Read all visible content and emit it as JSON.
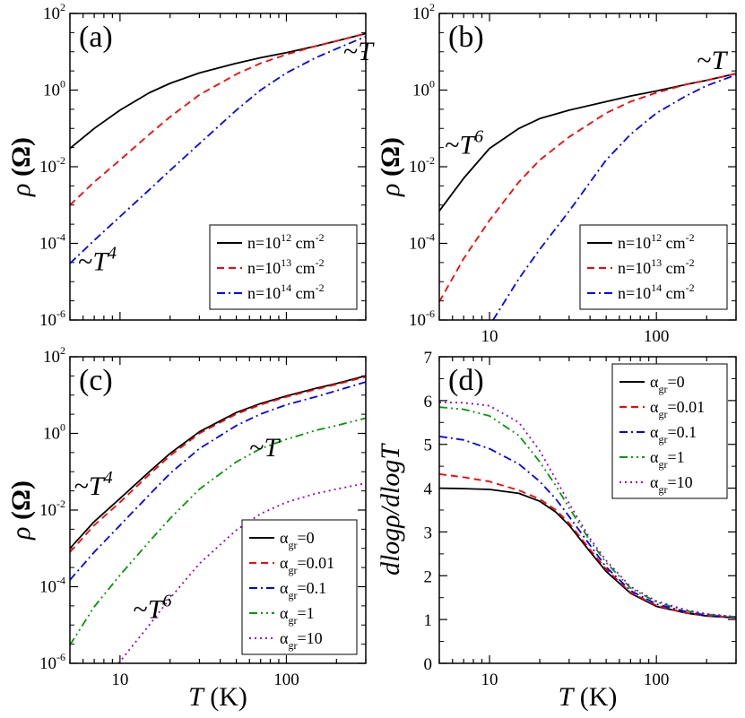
{
  "charts": [
    {
      "panel": "(a)",
      "type": "line",
      "xscale": "log",
      "yscale": "log",
      "xlim": [
        5,
        300
      ],
      "ylim": [
        1e-06,
        100
      ],
      "xlabel": "",
      "ylabel": "ρ (Ω)",
      "x_tick_labels": [],
      "y_ticks": [
        {
          "base": "10",
          "exp": "-6",
          "value": 1e-06
        },
        {
          "base": "10",
          "exp": "-4",
          "value": 0.0001
        },
        {
          "base": "10",
          "exp": "-2",
          "value": 0.01
        },
        {
          "base": "10",
          "exp": "0",
          "value": 1
        },
        {
          "base": "10",
          "exp": "2",
          "value": 100
        }
      ],
      "legend": {
        "position": "lower-right",
        "entries": [
          {
            "pre": "n=10",
            "sup": "12",
            "post": " cm",
            "sup2": "-2"
          },
          {
            "pre": "n=10",
            "sup": "13",
            "post": " cm",
            "sup2": "-2"
          },
          {
            "pre": "n=10",
            "sup": "14",
            "post": " cm",
            "sup2": "-2"
          }
        ]
      },
      "annotations": [
        {
          "pre": "~T",
          "sup": "",
          "x": 220,
          "y": 6
        },
        {
          "pre": "~T",
          "sup": "4",
          "x": 5.6,
          "y": 2e-05
        }
      ],
      "series": [
        {
          "color": "#000000",
          "dash": "",
          "x": [
            5,
            7,
            10,
            15,
            20,
            30,
            50,
            70,
            100,
            150,
            200,
            300
          ],
          "y": [
            0.03,
            0.1,
            0.3,
            0.85,
            1.5,
            2.8,
            5,
            7,
            9.5,
            14,
            19,
            30
          ]
        },
        {
          "color": "#ff0000",
          "dash": "8,5",
          "x": [
            5,
            7,
            10,
            15,
            20,
            30,
            50,
            70,
            100,
            150,
            200,
            300
          ],
          "y": [
            0.001,
            0.004,
            0.015,
            0.07,
            0.2,
            0.75,
            2.6,
            5,
            8.5,
            14,
            19,
            30
          ]
        },
        {
          "color": "#0000ff",
          "dash": "9,4,2,4",
          "x": [
            5,
            7,
            10,
            15,
            20,
            30,
            50,
            70,
            100,
            150,
            200,
            300
          ],
          "y": [
            3e-05,
            0.00012,
            0.0005,
            0.0025,
            0.008,
            0.04,
            0.3,
            1,
            2.8,
            7,
            12,
            25
          ]
        }
      ]
    },
    {
      "panel": "(b)",
      "type": "line",
      "xscale": "log",
      "yscale": "log",
      "xlim": [
        5,
        300
      ],
      "ylim": [
        1e-06,
        100
      ],
      "xlabel": "",
      "ylabel": "ρ (Ω)",
      "x_tick_labels": [
        "10",
        "100"
      ],
      "y_ticks": [
        {
          "base": "10",
          "exp": "-6",
          "value": 1e-06
        },
        {
          "base": "10",
          "exp": "-4",
          "value": 0.0001
        },
        {
          "base": "10",
          "exp": "-2",
          "value": 0.01
        },
        {
          "base": "10",
          "exp": "0",
          "value": 1
        },
        {
          "base": "10",
          "exp": "2",
          "value": 100
        }
      ],
      "legend": {
        "position": "lower-right",
        "entries": [
          {
            "pre": "n=10",
            "sup": "12",
            "post": " cm",
            "sup2": "-2"
          },
          {
            "pre": "n=10",
            "sup": "13",
            "post": " cm",
            "sup2": "-2"
          },
          {
            "pre": "n=10",
            "sup": "14",
            "post": " cm",
            "sup2": "-2"
          }
        ]
      },
      "annotations": [
        {
          "pre": "~T",
          "sup": "",
          "x": 175,
          "y": 3.5
        },
        {
          "pre": "~T",
          "sup": "6",
          "x": 5.4,
          "y": 0.022
        }
      ],
      "series": [
        {
          "color": "#000000",
          "dash": "",
          "x": [
            5,
            7,
            10,
            15,
            20,
            30,
            50,
            70,
            100,
            150,
            200,
            300
          ],
          "y": [
            0.0007,
            0.005,
            0.03,
            0.1,
            0.18,
            0.3,
            0.5,
            0.7,
            0.95,
            1.4,
            1.8,
            2.7
          ]
        },
        {
          "color": "#ff0000",
          "dash": "8,5",
          "x": [
            5,
            7,
            10,
            15,
            20,
            30,
            50,
            70,
            100,
            150,
            200,
            300
          ],
          "y": [
            3e-06,
            4e-05,
            0.0004,
            0.004,
            0.015,
            0.06,
            0.25,
            0.5,
            0.85,
            1.4,
            1.8,
            2.7
          ]
        },
        {
          "color": "#0000ff",
          "dash": "9,4,2,4",
          "x": [
            10.5,
            15,
            20,
            30,
            50,
            70,
            100,
            150,
            200,
            300
          ],
          "y": [
            1e-06,
            1.2e-05,
            7e-05,
            0.0007,
            0.015,
            0.07,
            0.25,
            0.7,
            1.3,
            2.5
          ]
        }
      ]
    },
    {
      "panel": "(c)",
      "type": "line",
      "xscale": "log",
      "yscale": "log",
      "xlim": [
        5,
        300
      ],
      "ylim": [
        1e-06,
        100
      ],
      "xlabel": "T (K)",
      "ylabel": "ρ (Ω)",
      "x_tick_labels": [
        "10",
        "100"
      ],
      "y_ticks": [
        {
          "base": "10",
          "exp": "-6",
          "value": 1e-06
        },
        {
          "base": "10",
          "exp": "-4",
          "value": 0.0001
        },
        {
          "base": "10",
          "exp": "-2",
          "value": 0.01
        },
        {
          "base": "10",
          "exp": "0",
          "value": 1
        },
        {
          "base": "10",
          "exp": "2",
          "value": 100
        }
      ],
      "legend": {
        "position": "lower-right",
        "entries": [
          {
            "pre": "α",
            "sub": "gr",
            "post": "=0"
          },
          {
            "pre": "α",
            "sub": "gr",
            "post": "=0.01"
          },
          {
            "pre": "α",
            "sub": "gr",
            "post": "=0.1"
          },
          {
            "pre": "α",
            "sub": "gr",
            "post": "=1"
          },
          {
            "pre": "α",
            "sub": "gr",
            "post": "=10"
          }
        ]
      },
      "annotations": [
        {
          "pre": "~T",
          "sup": "4",
          "x": 5.3,
          "y": 0.025
        },
        {
          "pre": "~T",
          "sup": "",
          "x": 60,
          "y": 0.25
        },
        {
          "pre": "~T",
          "sup": "6",
          "x": 12,
          "y": 1.5e-05
        }
      ],
      "series": [
        {
          "color": "#000000",
          "dash": "",
          "x": [
            5,
            7,
            10,
            15,
            20,
            30,
            50,
            70,
            100,
            150,
            200,
            300
          ],
          "y": [
            0.001,
            0.005,
            0.02,
            0.1,
            0.3,
            1.1,
            3.5,
            6,
            9.5,
            15,
            20,
            32
          ]
        },
        {
          "color": "#ff0000",
          "dash": "8,5",
          "x": [
            5,
            7,
            10,
            15,
            20,
            30,
            50,
            70,
            100,
            150,
            200,
            300
          ],
          "y": [
            0.0008,
            0.004,
            0.016,
            0.085,
            0.26,
            1,
            3.2,
            5.6,
            9,
            14,
            19,
            30
          ]
        },
        {
          "color": "#0000ff",
          "dash": "9,4,2,4",
          "x": [
            5,
            7,
            10,
            15,
            20,
            30,
            50,
            70,
            100,
            150,
            200,
            300
          ],
          "y": [
            0.00015,
            0.0008,
            0.004,
            0.025,
            0.09,
            0.4,
            1.6,
            3.2,
            5.6,
            9,
            13,
            22
          ]
        },
        {
          "color": "#009900",
          "dash": "9,4,2,4,2,4",
          "x": [
            5,
            7,
            10,
            15,
            20,
            30,
            50,
            70,
            100,
            150,
            200,
            300
          ],
          "y": [
            3e-06,
            3e-05,
            0.0002,
            0.0015,
            0.006,
            0.035,
            0.18,
            0.4,
            0.7,
            1.2,
            1.6,
            2.5
          ]
        },
        {
          "color": "#9900cc",
          "dash": "2,4",
          "x": [
            9.8,
            15,
            20,
            30,
            50,
            70,
            100,
            150,
            200,
            300
          ],
          "y": [
            1e-06,
            1e-05,
            5e-05,
            0.0004,
            0.003,
            0.008,
            0.016,
            0.027,
            0.035,
            0.05
          ]
        }
      ]
    },
    {
      "panel": "(d)",
      "type": "line",
      "xscale": "log",
      "yscale": "linear",
      "xlim": [
        5,
        300
      ],
      "ylim": [
        0,
        7
      ],
      "xlabel": "T (K)",
      "ylabel": "dlogρ/dlogT",
      "x_tick_labels": [
        "10",
        "100"
      ],
      "y_ticks": [
        {
          "base": "0",
          "exp": "",
          "value": 0
        },
        {
          "base": "1",
          "exp": "",
          "value": 1
        },
        {
          "base": "2",
          "exp": "",
          "value": 2
        },
        {
          "base": "3",
          "exp": "",
          "value": 3
        },
        {
          "base": "4",
          "exp": "",
          "value": 4
        },
        {
          "base": "5",
          "exp": "",
          "value": 5
        },
        {
          "base": "6",
          "exp": "",
          "value": 6
        },
        {
          "base": "7",
          "exp": "",
          "value": 7
        }
      ],
      "legend": {
        "position": "upper-right",
        "entries": [
          {
            "pre": "α",
            "sub": "gr",
            "post": "=0"
          },
          {
            "pre": "α",
            "sub": "gr",
            "post": "=0.01"
          },
          {
            "pre": "α",
            "sub": "gr",
            "post": "=0.1"
          },
          {
            "pre": "α",
            "sub": "gr",
            "post": "=1"
          },
          {
            "pre": "α",
            "sub": "gr",
            "post": "=10"
          }
        ]
      },
      "annotations": [],
      "series": [
        {
          "color": "#000000",
          "dash": "",
          "x": [
            5,
            7,
            10,
            15,
            20,
            25,
            30,
            40,
            50,
            70,
            100,
            150,
            200,
            300
          ],
          "y": [
            4.0,
            3.99,
            3.97,
            3.88,
            3.7,
            3.45,
            3.15,
            2.55,
            2.1,
            1.6,
            1.3,
            1.15,
            1.08,
            1.04
          ]
        },
        {
          "color": "#ff0000",
          "dash": "8,5",
          "x": [
            5,
            7,
            10,
            15,
            20,
            25,
            30,
            40,
            50,
            70,
            100,
            150,
            200,
            300
          ],
          "y": [
            4.32,
            4.25,
            4.15,
            3.95,
            3.75,
            3.5,
            3.2,
            2.6,
            2.15,
            1.62,
            1.32,
            1.15,
            1.09,
            1.04
          ]
        },
        {
          "color": "#0000ff",
          "dash": "9,4,2,4",
          "x": [
            5,
            7,
            10,
            15,
            20,
            25,
            30,
            40,
            50,
            70,
            100,
            150,
            200,
            300
          ],
          "y": [
            5.18,
            5.1,
            4.9,
            4.55,
            4.15,
            3.75,
            3.35,
            2.7,
            2.2,
            1.66,
            1.35,
            1.18,
            1.1,
            1.05
          ]
        },
        {
          "color": "#009900",
          "dash": "9,4,2,4,2,4",
          "x": [
            5,
            7,
            10,
            15,
            20,
            25,
            30,
            40,
            50,
            70,
            100,
            150,
            200,
            300
          ],
          "y": [
            5.85,
            5.8,
            5.65,
            5.2,
            4.6,
            4.05,
            3.55,
            2.8,
            2.3,
            1.72,
            1.4,
            1.2,
            1.12,
            1.06
          ]
        },
        {
          "color": "#9900cc",
          "dash": "2,4",
          "x": [
            5,
            7,
            10,
            15,
            20,
            25,
            30,
            40,
            50,
            70,
            100,
            150,
            200,
            300
          ],
          "y": [
            5.96,
            5.95,
            5.88,
            5.5,
            4.85,
            4.2,
            3.65,
            2.85,
            2.35,
            1.75,
            1.42,
            1.22,
            1.13,
            1.06
          ]
        }
      ]
    }
  ]
}
